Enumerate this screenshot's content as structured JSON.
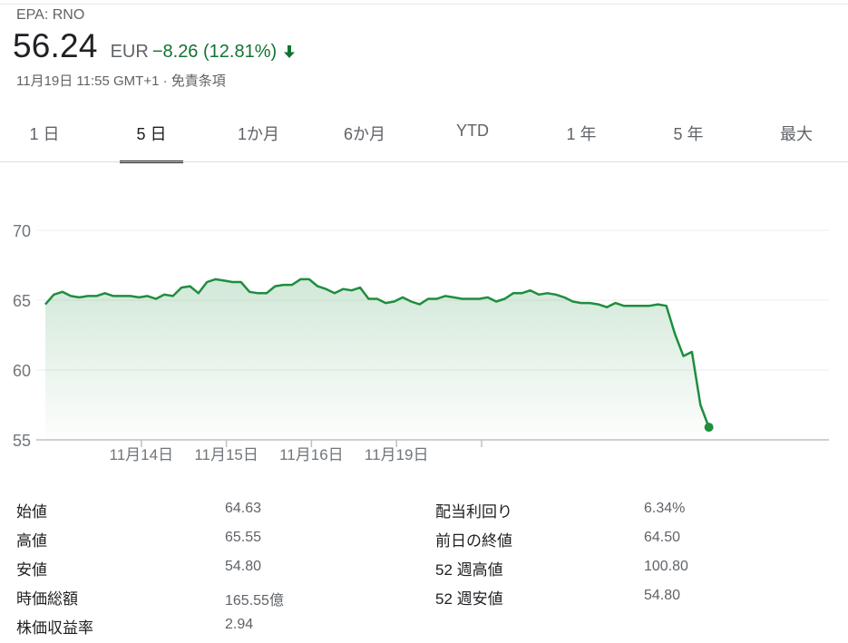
{
  "quote": {
    "ticker": "EPA: RNO",
    "price": "56.24",
    "currency": "EUR",
    "change": "−8.26 (12.81%)",
    "timestamp": "11月19日 11:55 GMT+1",
    "separator": "·",
    "disclaimer": "免責条項",
    "change_color": "#137333"
  },
  "tabs": [
    {
      "label": "1 日",
      "active": false
    },
    {
      "label": "5 日",
      "active": true
    },
    {
      "label": "1か月",
      "active": false
    },
    {
      "label": "6か月",
      "active": false
    },
    {
      "label": "YTD",
      "active": false
    },
    {
      "label": "1 年",
      "active": false
    },
    {
      "label": "5 年",
      "active": false
    },
    {
      "label": "最大",
      "active": false
    }
  ],
  "chart_data": {
    "type": "area",
    "title": "",
    "xlabel": "",
    "ylabel": "",
    "ylim": [
      55,
      70
    ],
    "y_ticks": [
      "70",
      "65",
      "60",
      "55"
    ],
    "x_tick_labels": [
      {
        "label": "11月14日",
        "index": 10
      },
      {
        "label": "11月15日",
        "index": 20
      },
      {
        "label": "11月16日",
        "index": 30
      },
      {
        "label": "11月19日",
        "index": 40
      },
      {
        "label": "",
        "index": 50
      }
    ],
    "line_color": "#1e8e3e",
    "grid": true,
    "series": [
      {
        "values": [
          64.7,
          65.4,
          65.6,
          65.3,
          65.2,
          65.3,
          65.3,
          65.5,
          65.3,
          65.3,
          65.3,
          65.2,
          65.3,
          65.1,
          65.4,
          65.3,
          65.9,
          66.0,
          65.5,
          66.3,
          66.5,
          66.4,
          66.3,
          66.3,
          65.6,
          65.5,
          65.5,
          66.0,
          66.1,
          66.1,
          66.5,
          66.5,
          66.0,
          65.8,
          65.5,
          65.8,
          65.7,
          65.9,
          65.1,
          65.1,
          64.8,
          64.9,
          65.2,
          64.9,
          64.7,
          65.1,
          65.1,
          65.3,
          65.2,
          65.1,
          65.1,
          65.1,
          65.2,
          64.9,
          65.1,
          65.5,
          65.5,
          65.7,
          65.4,
          65.5,
          65.4,
          65.2,
          64.9,
          64.8,
          64.8,
          64.7,
          64.5,
          64.8,
          64.6,
          64.6,
          64.6,
          64.6,
          64.7,
          64.6,
          62.6,
          61.0,
          61.3,
          57.5,
          55.9
        ]
      }
    ]
  },
  "stats": [
    {
      "label": "始値",
      "value": "64.63"
    },
    {
      "label": "高値",
      "value": "65.55"
    },
    {
      "label": "安値",
      "value": "54.80"
    },
    {
      "label": "時価総額",
      "value": "165.55億"
    },
    {
      "label": "株価収益率",
      "value": "2.94"
    },
    {
      "label": "配当利回り",
      "value": "6.34%"
    },
    {
      "label": "前日の終値",
      "value": "64.50"
    },
    {
      "label": "52 週高値",
      "value": "100.80"
    },
    {
      "label": "52 週安値",
      "value": "54.80"
    }
  ]
}
